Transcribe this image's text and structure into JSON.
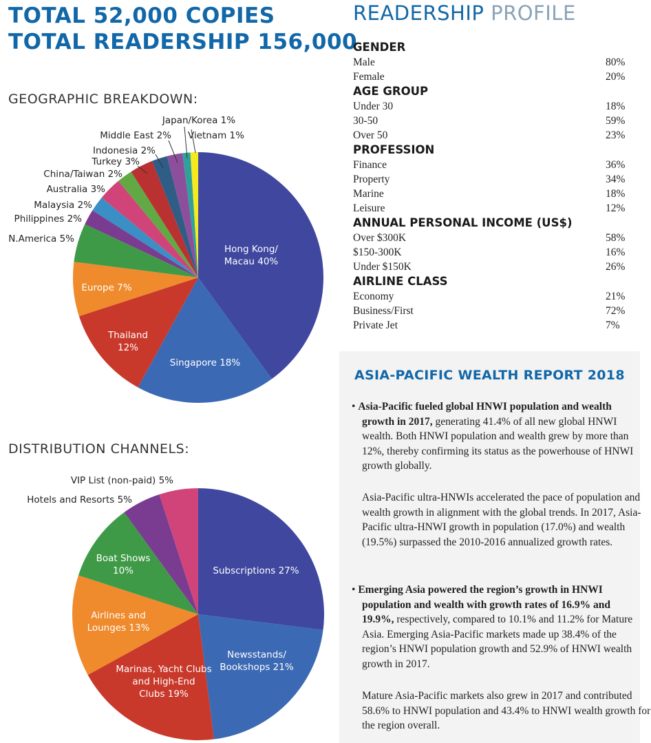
{
  "header": {
    "line1": "TOTAL 52,000 COPIES",
    "line2": "TOTAL READERSHIP 156,000"
  },
  "geographic_title": "GEOGRAPHIC BREAKDOWN:",
  "distribution_title": "DISTRIBUTION CHANNELS:",
  "profile": {
    "title_a": "READERSHIP",
    "title_b": " PROFILE",
    "groups": [
      {
        "title": "GENDER",
        "rows": [
          {
            "label": "Male",
            "value": "80%"
          },
          {
            "label": "Female",
            "value": "20%"
          }
        ]
      },
      {
        "title": "AGE GROUP",
        "rows": [
          {
            "label": "Under 30",
            "value": "18%"
          },
          {
            "label": "30-50",
            "value": "59%"
          },
          {
            "label": "Over 50",
            "value": "23%"
          }
        ]
      },
      {
        "title": "PROFESSION",
        "rows": [
          {
            "label": "Finance",
            "value": "36%"
          },
          {
            "label": "Property",
            "value": "34%"
          },
          {
            "label": "Marine",
            "value": "18%"
          },
          {
            "label": "Leisure",
            "value": "12%"
          }
        ]
      },
      {
        "title": "ANNUAL PERSONAL INCOME (US$)",
        "rows": [
          {
            "label": "Over $300K",
            "value": "58%"
          },
          {
            "label": "$150-300K",
            "value": "16%"
          },
          {
            "label": "Under $150K",
            "value": "26%"
          }
        ]
      },
      {
        "title": "AIRLINE CLASS",
        "rows": [
          {
            "label": "Economy",
            "value": "21%"
          },
          {
            "label": "Business/First",
            "value": "72%"
          },
          {
            "label": "Private Jet",
            "value": "7%"
          }
        ]
      }
    ]
  },
  "report": {
    "title": "ASIA-PACIFIC WEALTH REPORT 2018",
    "b1_bold": "Asia-Pacific fueled global HNWI population and wealth growth in 2017,",
    "b1_rest": " generating 41.4% of all new global HNWI wealth. Both HNWI population and wealth grew by more than 12%, thereby confirming its status as the powerhouse of HNWI growth globally.",
    "p1": "Asia-Pacific ultra-HNWIs accelerated the pace of population and wealth growth in alignment with the global trends. In 2017, Asia-Pacific ultra-HNWI growth in population (17.0%) and wealth (19.5%) surpassed the 2010-2016 annualized growth rates.",
    "b2_bold": "Emerging Asia powered the region’s growth in HNWI population and wealth with growth rates of 16.9% and 19.9%,",
    "b2_rest": " respectively, compared to 10.1% and 11.2% for Mature Asia.  Emerging Asia-Pacific markets made up 38.4% of the region’s HNWI population growth and 52.9% of HNWI wealth growth in 2017.",
    "p2": "Mature Asia-Pacific markets also grew in 2017 and contributed 58.6% to HNWI population and 43.4% to HNWI wealth growth for the region overall."
  },
  "chart_data": [
    {
      "type": "pie",
      "title": "GEOGRAPHIC BREAKDOWN:",
      "slices": [
        {
          "label": "Hong Kong/ Macau 40%",
          "value": 40,
          "color": "#3f479f"
        },
        {
          "label": "Singapore 18%",
          "value": 18,
          "color": "#3c69b4"
        },
        {
          "label": "Thailand 12%",
          "value": 12,
          "color": "#c8392b"
        },
        {
          "label": "Europe 7%",
          "value": 7,
          "color": "#ef8a2d"
        },
        {
          "label": "N.America 5%",
          "value": 5,
          "color": "#3f9a47"
        },
        {
          "label": "Philippines 2%",
          "value": 2,
          "color": "#7a3c91"
        },
        {
          "label": "Malaysia 2%",
          "value": 2,
          "color": "#3a8fc4"
        },
        {
          "label": "Australia 3%",
          "value": 3,
          "color": "#d14479"
        },
        {
          "label": "China/Taiwan 2%",
          "value": 2,
          "color": "#62a845"
        },
        {
          "label": "Turkey 3%",
          "value": 3,
          "color": "#b93130"
        },
        {
          "label": "Indonesia 2%",
          "value": 2,
          "color": "#2f5d85"
        },
        {
          "label": "Middle East 2%",
          "value": 2,
          "color": "#8d4f9c"
        },
        {
          "label": "Japan/Korea 1%",
          "value": 1,
          "color": "#2fa19b"
        },
        {
          "label": "Vietnam 1%",
          "value": 1,
          "color": "#f6ea1f"
        }
      ]
    },
    {
      "type": "pie",
      "title": "DISTRIBUTION CHANNELS:",
      "slices": [
        {
          "label": "Subscriptions 27%",
          "value": 27,
          "color": "#3f479f"
        },
        {
          "label": "Newsstands/ Bookshops 21%",
          "value": 21,
          "color": "#3c69b4"
        },
        {
          "label": "Marinas, Yacht Clubs and High-End Clubs 19%",
          "value": 19,
          "color": "#c8392b"
        },
        {
          "label": "Airlines and Lounges 13%",
          "value": 13,
          "color": "#ef8a2d"
        },
        {
          "label": "Boat Shows 10%",
          "value": 10,
          "color": "#3f9a47"
        },
        {
          "label": "Hotels and Resorts 5%",
          "value": 5,
          "color": "#7a3c91"
        },
        {
          "label": "VIP List (non-paid) 5%",
          "value": 5,
          "color": "#d14479"
        }
      ]
    }
  ]
}
